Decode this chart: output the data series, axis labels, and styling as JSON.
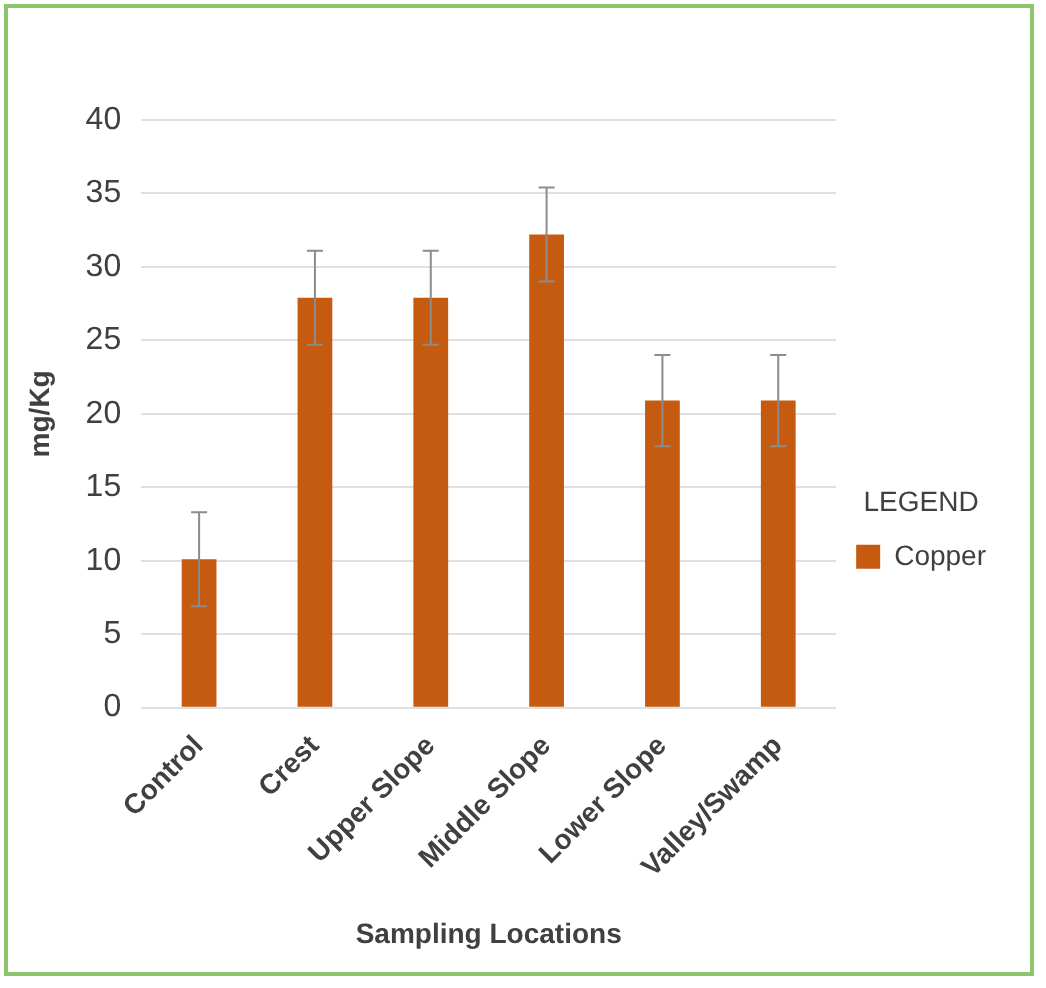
{
  "chart_data": {
    "type": "bar",
    "xlabel": "Sampling Locations",
    "ylabel": "mg/Kg",
    "legend_title": "LEGEND",
    "categories": [
      "Control",
      "Crest",
      "Upper Slope",
      "Middle Slope",
      "Lower Slope",
      "Valley/Swamp"
    ],
    "series": [
      {
        "name": "Copper",
        "color": "#c55a11",
        "values": [
          10.1,
          27.9,
          27.9,
          32.2,
          20.9,
          20.9
        ],
        "errors": [
          3.2,
          3.2,
          3.2,
          3.2,
          3.1,
          3.1
        ]
      }
    ],
    "ylim": [
      0,
      40
    ],
    "yticks": [
      0,
      5,
      10,
      15,
      20,
      25,
      30,
      35,
      40
    ],
    "grid": "y",
    "legend": "right"
  }
}
